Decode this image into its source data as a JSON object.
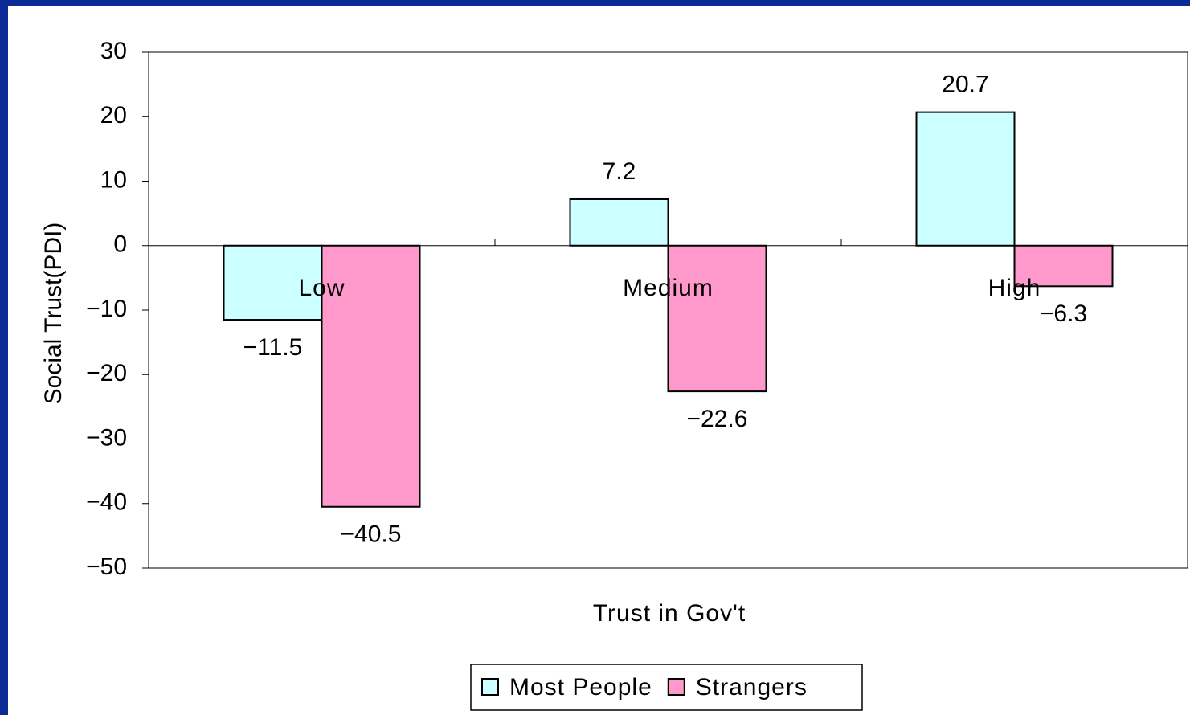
{
  "chart_data": {
    "type": "bar",
    "x_label": "Trust in Gov't",
    "y_label": "Social Trust(PDI)",
    "categories": [
      "Low",
      "Medium",
      "High"
    ],
    "series": [
      {
        "name": "Most People",
        "color": "#ccffff",
        "values": [
          -11.5,
          7.2,
          20.7
        ],
        "value_labels": [
          "−11.5",
          "7.2",
          "20.7"
        ]
      },
      {
        "name": "Strangers",
        "color": "#ff99cc",
        "values": [
          -40.5,
          -22.6,
          -6.3
        ],
        "value_labels": [
          "−40.5",
          "−22.6",
          "−6.3"
        ]
      }
    ],
    "ylim": [
      -50,
      30
    ],
    "yticks": [
      {
        "value": -50,
        "label": "−50"
      },
      {
        "value": -40,
        "label": "−40"
      },
      {
        "value": -30,
        "label": "−30"
      },
      {
        "value": -20,
        "label": "−20"
      },
      {
        "value": -10,
        "label": "−10"
      },
      0,
      10,
      20,
      30
    ],
    "legend": "bottom"
  }
}
